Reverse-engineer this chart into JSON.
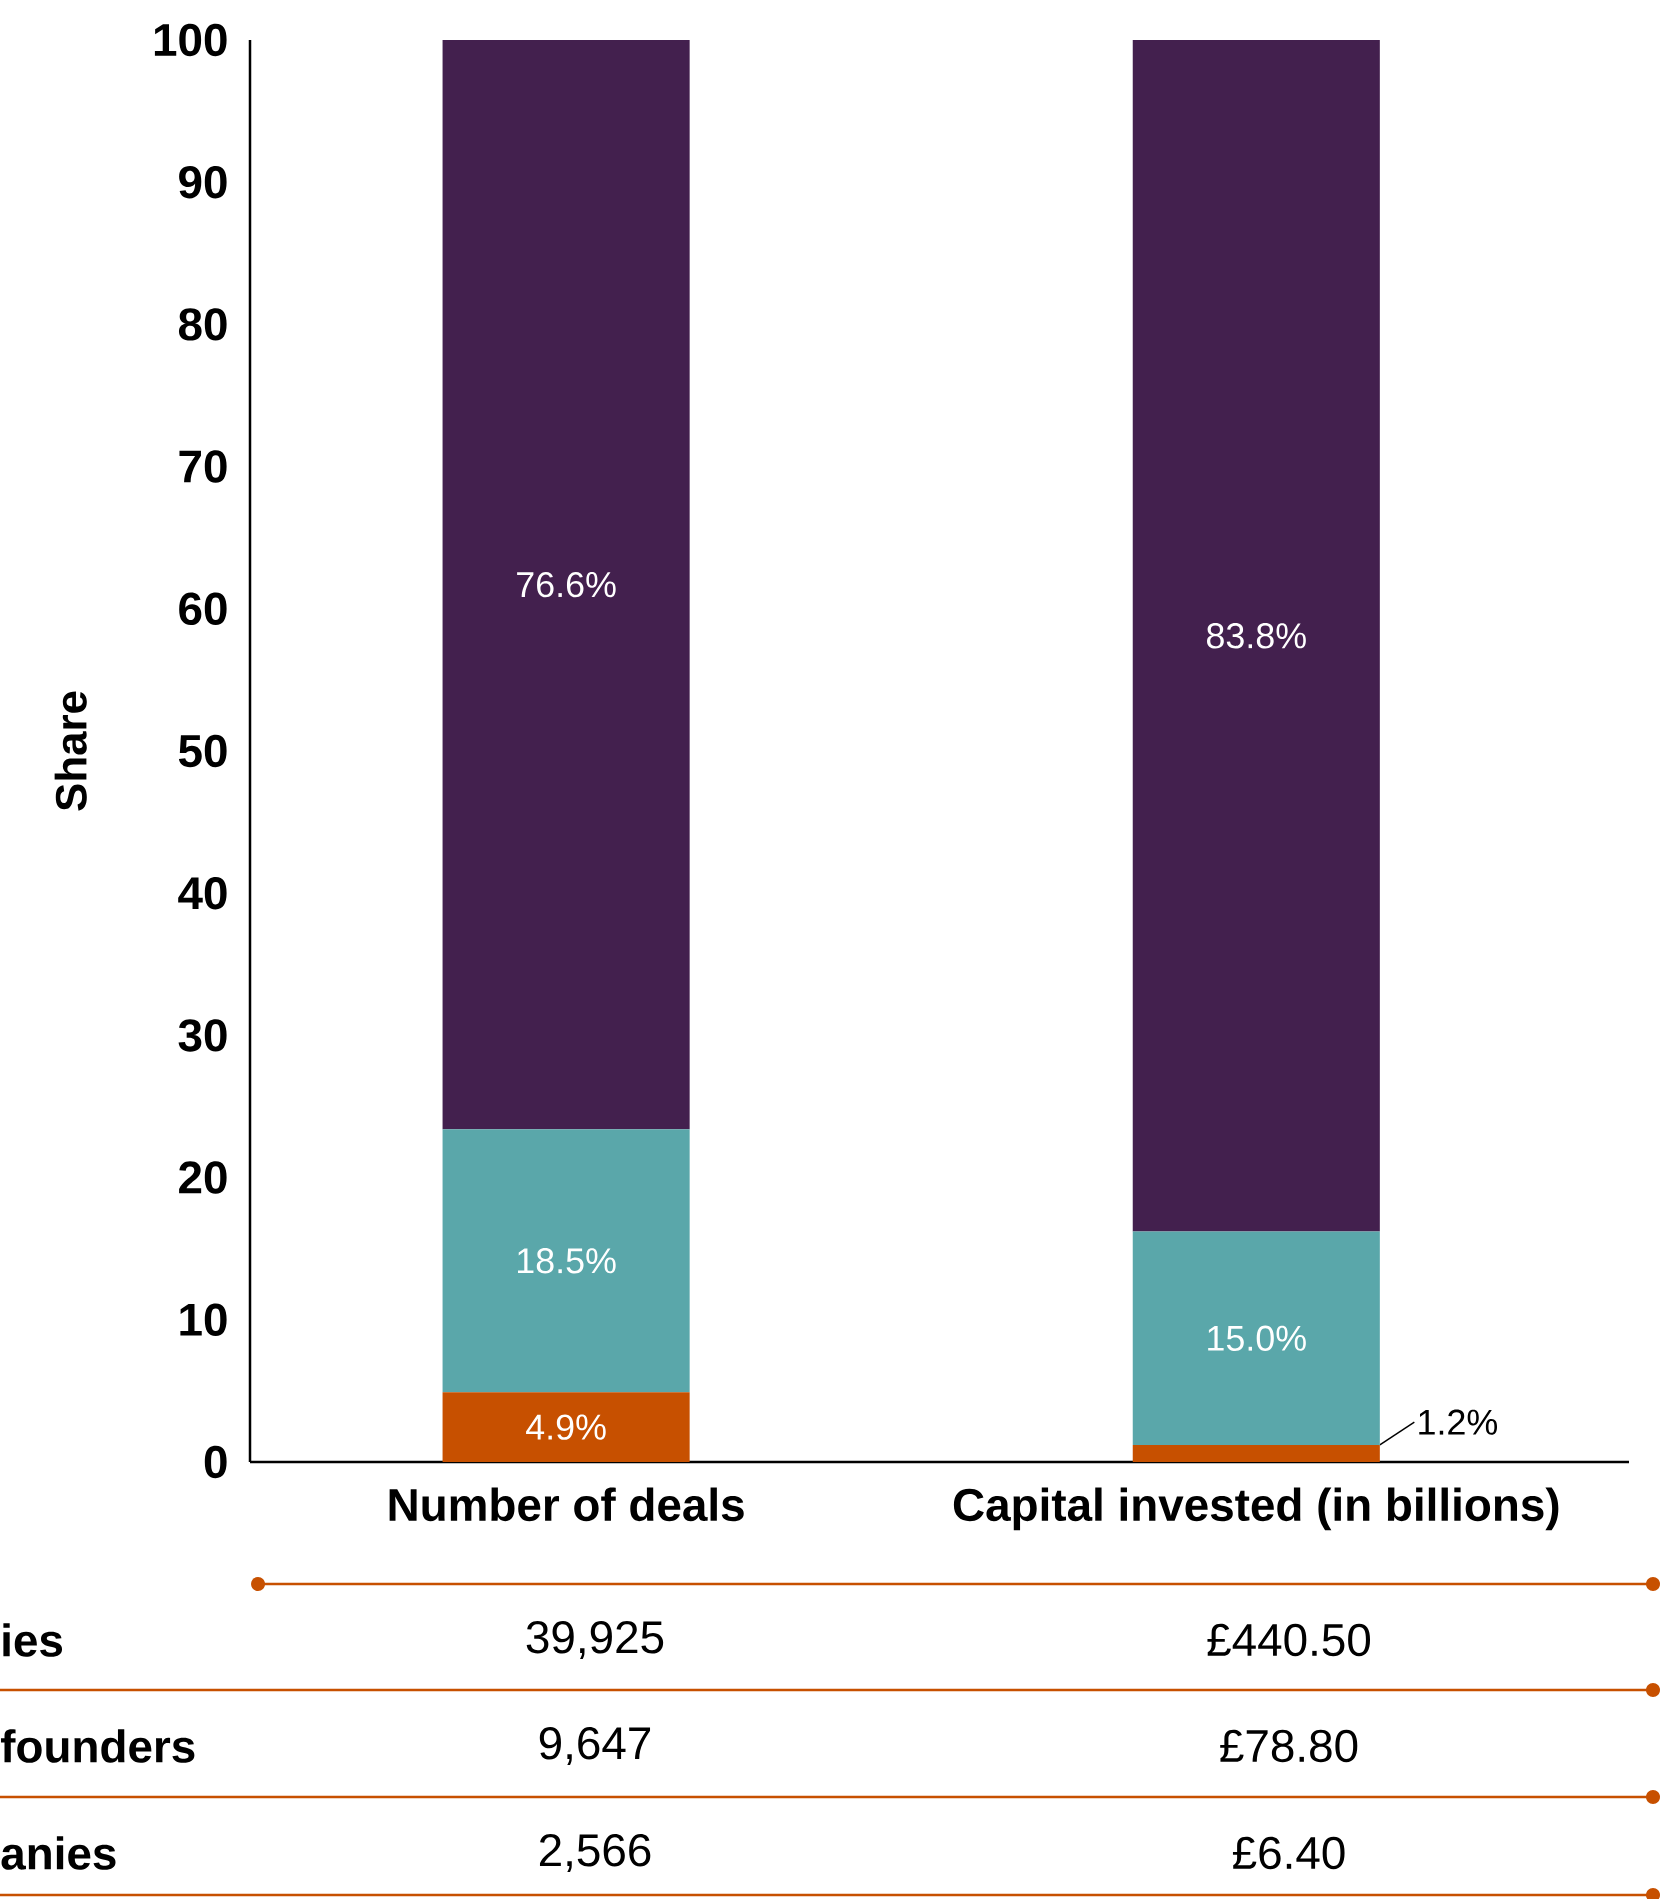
{
  "chart_data": {
    "type": "bar",
    "stacked": true,
    "ylabel": "Share",
    "categories": [
      "Number of deals",
      "Capital invested (in billions)"
    ],
    "ylim": [
      0,
      100
    ],
    "yticks": [
      0,
      10,
      20,
      30,
      40,
      50,
      60,
      70,
      80,
      90,
      100
    ],
    "grid": false,
    "series": [
      {
        "color": "#c75000",
        "values": [
          4.9,
          1.2
        ],
        "value_labels": [
          "4.9%",
          "1.2%"
        ]
      },
      {
        "color": "#5aa7aa",
        "values": [
          18.5,
          15.0
        ],
        "value_labels": [
          "18.5%",
          "15.0%"
        ]
      },
      {
        "color": "#43204e",
        "values": [
          76.6,
          83.8
        ],
        "value_labels": [
          "76.6%",
          "83.8%"
        ]
      }
    ],
    "annotations": [
      "ies",
      "39,925",
      "£440.50",
      "founders",
      "9,647",
      "£78.80",
      "anies",
      "2,566",
      "£6.40"
    ]
  }
}
